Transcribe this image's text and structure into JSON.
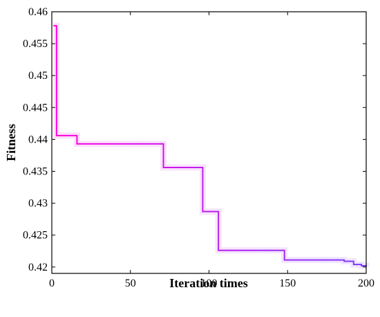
{
  "chart_data": {
    "type": "line",
    "title": "",
    "xlabel": "Iteration times",
    "ylabel": "Fitness",
    "xlim": [
      0,
      200
    ],
    "ylim": [
      0.419,
      0.46
    ],
    "x_ticks": [
      0,
      50,
      100,
      150,
      200
    ],
    "x_tick_labels": [
      "0",
      "50",
      "100",
      "150",
      "200"
    ],
    "y_ticks": [
      0.42,
      0.425,
      0.43,
      0.435,
      0.44,
      0.445,
      0.45,
      0.455,
      0.46
    ],
    "y_tick_labels": [
      "0.42",
      "0.425",
      "0.43",
      "0.435",
      "0.44",
      "0.445",
      "0.45",
      "0.455",
      "0.46"
    ],
    "grid": false,
    "legend": "none",
    "line_style": "step",
    "gradient_colors": [
      "#ff00dd",
      "#7a3cff"
    ],
    "series": [
      {
        "x": [
          1,
          2,
          3,
          15,
          16,
          70,
          71,
          95,
          96,
          105,
          106,
          147,
          148,
          182,
          186,
          187,
          192,
          193,
          197,
          198,
          200
        ],
        "y": [
          0.4578,
          0.4578,
          0.4406,
          0.4406,
          0.4393,
          0.4393,
          0.4356,
          0.4356,
          0.4287,
          0.4287,
          0.4226,
          0.4226,
          0.4211,
          0.4211,
          0.4209,
          0.4209,
          0.4204,
          0.4204,
          0.4202,
          0.4202,
          0.4201
        ]
      }
    ]
  }
}
